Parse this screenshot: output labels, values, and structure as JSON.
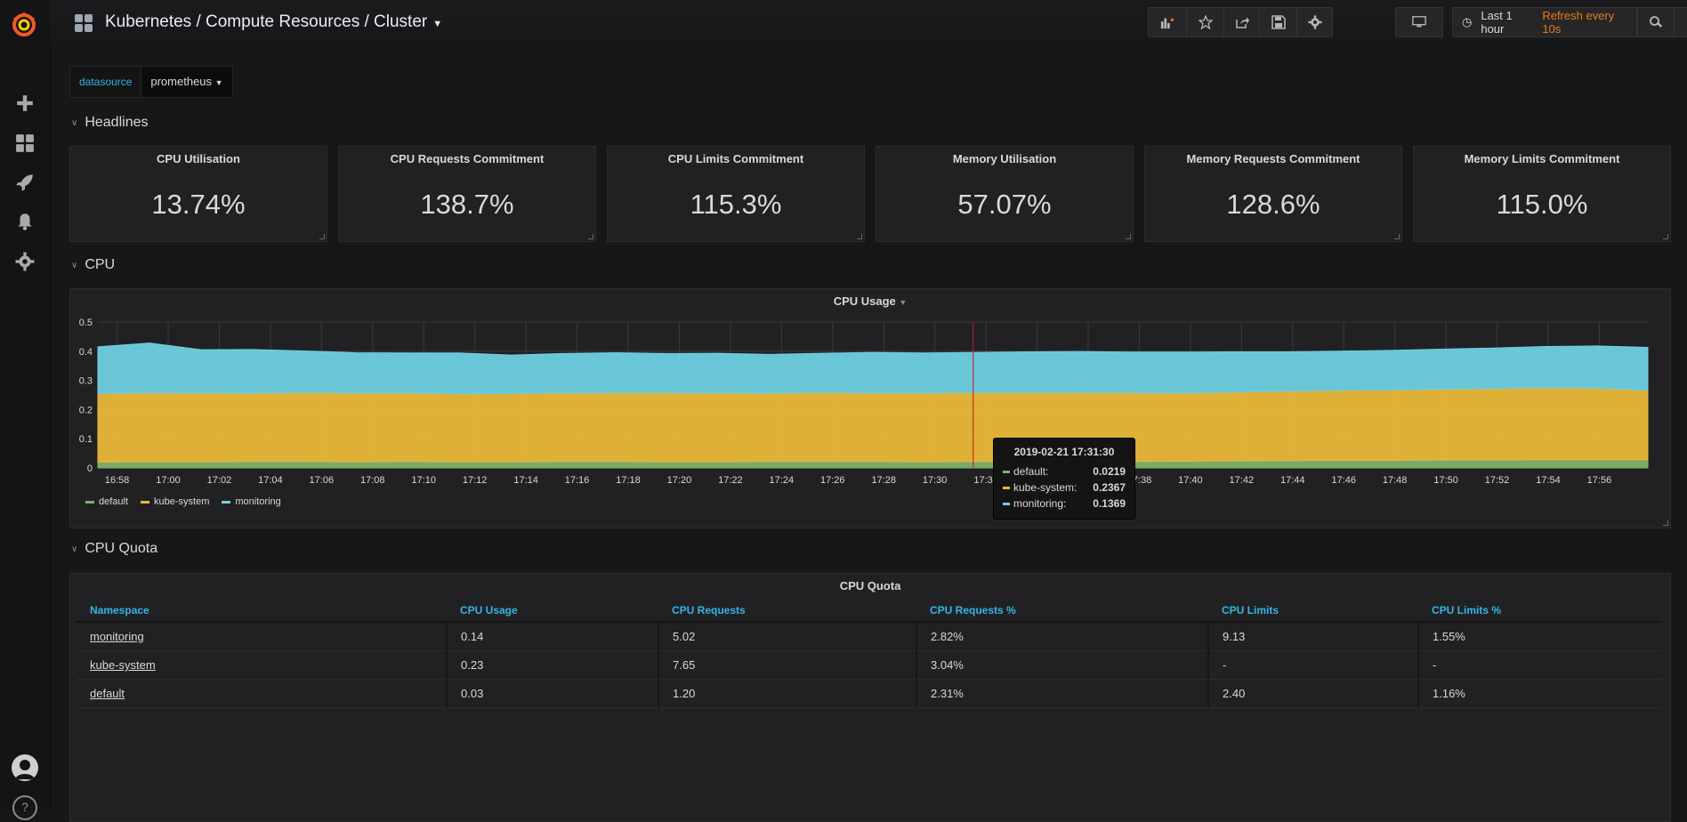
{
  "nav": {
    "breadcrumb": "Kubernetes / Compute Resources / Cluster",
    "time_range": "Last 1 hour",
    "refresh": "Refresh every 10s"
  },
  "variables": {
    "label": "datasource",
    "value": "prometheus"
  },
  "rows": {
    "headlines": "Headlines",
    "cpu": "CPU",
    "cpu_quota": "CPU Quota"
  },
  "stats": [
    {
      "title": "CPU Utilisation",
      "value": "13.74%"
    },
    {
      "title": "CPU Requests Commitment",
      "value": "138.7%"
    },
    {
      "title": "CPU Limits Commitment",
      "value": "115.3%"
    },
    {
      "title": "Memory Utilisation",
      "value": "57.07%"
    },
    {
      "title": "Memory Requests Commitment",
      "value": "128.6%"
    },
    {
      "title": "Memory Limits Commitment",
      "value": "115.0%"
    }
  ],
  "cpu_panel": {
    "title": "CPU Usage"
  },
  "chart_data": {
    "type": "area",
    "title": "CPU Usage",
    "stacked": true,
    "ylim": [
      0,
      0.5
    ],
    "yticks": [
      "0",
      "0.1",
      "0.2",
      "0.3",
      "0.4",
      "0.5"
    ],
    "xticks": [
      "16:58",
      "17:00",
      "17:02",
      "17:04",
      "17:06",
      "17:08",
      "17:10",
      "17:12",
      "17:14",
      "17:16",
      "17:18",
      "17:20",
      "17:22",
      "17:24",
      "17:26",
      "17:28",
      "17:30",
      "17:32",
      "17:34",
      "17:36",
      "17:38",
      "17:40",
      "17:42",
      "17:44",
      "17:46",
      "17:48",
      "17:50",
      "17:52",
      "17:54",
      "17:56"
    ],
    "series": [
      {
        "name": "default",
        "color": "#7eb26d",
        "values": [
          0.02,
          0.021,
          0.021,
          0.022,
          0.022,
          0.021,
          0.022,
          0.021,
          0.021,
          0.022,
          0.022,
          0.021,
          0.021,
          0.022,
          0.022,
          0.022,
          0.021,
          0.022,
          0.022,
          0.021,
          0.022,
          0.023,
          0.024,
          0.025,
          0.026,
          0.026,
          0.027,
          0.027,
          0.028,
          0.028,
          0.028
        ]
      },
      {
        "name": "kube-system",
        "color": "#eab839",
        "values": [
          0.235,
          0.237,
          0.236,
          0.234,
          0.237,
          0.236,
          0.235,
          0.233,
          0.234,
          0.235,
          0.236,
          0.237,
          0.236,
          0.234,
          0.237,
          0.235,
          0.236,
          0.237,
          0.236,
          0.238,
          0.236,
          0.234,
          0.236,
          0.238,
          0.24,
          0.241,
          0.243,
          0.245,
          0.247,
          0.246,
          0.238
        ]
      },
      {
        "name": "monitoring",
        "color": "#6ed0e0",
        "values": [
          0.16,
          0.17,
          0.148,
          0.15,
          0.142,
          0.138,
          0.137,
          0.14,
          0.132,
          0.135,
          0.137,
          0.134,
          0.136,
          0.133,
          0.134,
          0.139,
          0.137,
          0.137,
          0.14,
          0.14,
          0.139,
          0.14,
          0.138,
          0.135,
          0.134,
          0.136,
          0.137,
          0.139,
          0.141,
          0.144,
          0.147
        ]
      }
    ],
    "legend": [
      "default",
      "kube-system",
      "monitoring"
    ],
    "legend_position": "bottom-left",
    "cursor_time": "17:31:30",
    "grid": true
  },
  "tooltip": {
    "time": "2019-02-21 17:31:30",
    "rows": [
      {
        "name": "default:",
        "value": "0.0219",
        "color": "#7eb26d"
      },
      {
        "name": "kube-system:",
        "value": "0.2367",
        "color": "#eab839"
      },
      {
        "name": "monitoring:",
        "value": "0.1369",
        "color": "#6ed0e0"
      }
    ]
  },
  "quota": {
    "title": "CPU Quota",
    "headers": [
      "Namespace",
      "CPU Usage",
      "CPU Requests",
      "CPU Requests %",
      "CPU Limits",
      "CPU Limits %"
    ],
    "rows": [
      [
        "monitoring",
        "0.14",
        "5.02",
        "2.82%",
        "9.13",
        "1.55%"
      ],
      [
        "kube-system",
        "0.23",
        "7.65",
        "3.04%",
        "-",
        "-"
      ],
      [
        "default",
        "0.03",
        "1.20",
        "2.31%",
        "2.40",
        "1.16%"
      ]
    ]
  }
}
